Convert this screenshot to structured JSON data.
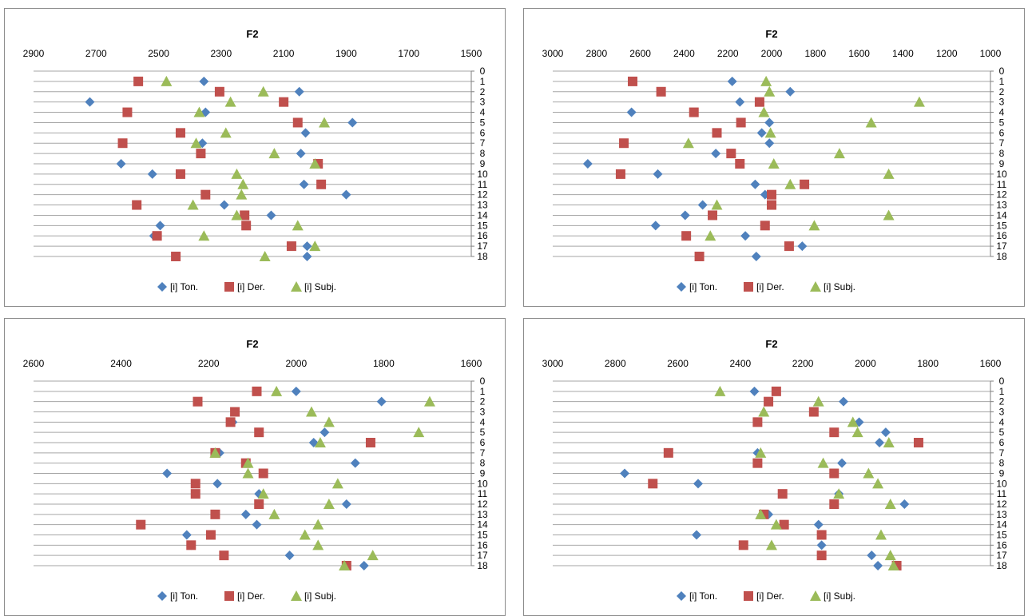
{
  "colors": {
    "ton": "#4f81bd",
    "der": "#c0504d",
    "subj": "#9bbb59"
  },
  "charts": [
    {
      "title": "F2",
      "xlim": [
        2900,
        1500
      ],
      "xticks": [
        2900,
        2700,
        2500,
        2300,
        2100,
        1900,
        1700,
        1500
      ],
      "yticks": [
        0,
        1,
        2,
        3,
        4,
        5,
        6,
        7,
        8,
        9,
        10,
        11,
        12,
        13,
        14,
        15,
        16,
        17,
        18
      ],
      "legend": [
        "[i] Ton.",
        "[i] Der.",
        "[i] Subj."
      ],
      "series": [
        {
          "key": "ton",
          "marker": "diamond",
          "points": [
            [
              2355,
              1
            ],
            [
              2050,
              2
            ],
            [
              2720,
              3
            ],
            [
              2350,
              4
            ],
            [
              1880,
              5
            ],
            [
              2030,
              6
            ],
            [
              2360,
              7
            ],
            [
              2045,
              8
            ],
            [
              2620,
              9
            ],
            [
              2520,
              10
            ],
            [
              2035,
              11
            ],
            [
              1900,
              12
            ],
            [
              2290,
              13
            ],
            [
              2140,
              14
            ],
            [
              2495,
              15
            ],
            [
              2515,
              16
            ],
            [
              2025,
              17
            ],
            [
              2025,
              18
            ]
          ]
        },
        {
          "key": "der",
          "marker": "square",
          "points": [
            [
              2565,
              1
            ],
            [
              2305,
              2
            ],
            [
              2100,
              3
            ],
            [
              2600,
              4
            ],
            [
              2055,
              5
            ],
            [
              2430,
              6
            ],
            [
              2615,
              7
            ],
            [
              2365,
              8
            ],
            [
              1990,
              9
            ],
            [
              2430,
              10
            ],
            [
              1980,
              11
            ],
            [
              2350,
              12
            ],
            [
              2570,
              13
            ],
            [
              2225,
              14
            ],
            [
              2220,
              15
            ],
            [
              2505,
              16
            ],
            [
              2075,
              17
            ],
            [
              2445,
              18
            ]
          ]
        },
        {
          "key": "subj",
          "marker": "triangle",
          "points": [
            [
              2475,
              1
            ],
            [
              2165,
              2
            ],
            [
              2270,
              3
            ],
            [
              2370,
              4
            ],
            [
              1970,
              5
            ],
            [
              2285,
              6
            ],
            [
              2380,
              7
            ],
            [
              2130,
              8
            ],
            [
              2000,
              9
            ],
            [
              2250,
              10
            ],
            [
              2230,
              11
            ],
            [
              2235,
              12
            ],
            [
              2390,
              13
            ],
            [
              2250,
              14
            ],
            [
              2055,
              15
            ],
            [
              2355,
              16
            ],
            [
              2000,
              17
            ],
            [
              2160,
              18
            ]
          ]
        }
      ]
    },
    {
      "title": "F2",
      "xlim": [
        3000,
        1000
      ],
      "xticks": [
        3000,
        2800,
        2600,
        2400,
        2200,
        2000,
        1800,
        1600,
        1400,
        1200,
        1000
      ],
      "yticks": [
        0,
        1,
        2,
        3,
        4,
        5,
        6,
        7,
        8,
        9,
        10,
        11,
        12,
        13,
        14,
        15,
        16,
        17,
        18
      ],
      "legend": [
        "[i] Ton.",
        "[i] Der.",
        "[i] Subj."
      ],
      "series": [
        {
          "key": "ton",
          "marker": "diamond",
          "points": [
            [
              2180,
              1
            ],
            [
              1915,
              2
            ],
            [
              2145,
              3
            ],
            [
              2640,
              4
            ],
            [
              2010,
              5
            ],
            [
              2045,
              6
            ],
            [
              2010,
              7
            ],
            [
              2255,
              8
            ],
            [
              2840,
              9
            ],
            [
              2520,
              10
            ],
            [
              2075,
              11
            ],
            [
              2030,
              12
            ],
            [
              2315,
              13
            ],
            [
              2395,
              14
            ],
            [
              2530,
              15
            ],
            [
              2120,
              16
            ],
            [
              1860,
              17
            ],
            [
              2070,
              18
            ]
          ]
        },
        {
          "key": "der",
          "marker": "square",
          "points": [
            [
              2635,
              1
            ],
            [
              2505,
              2
            ],
            [
              2055,
              3
            ],
            [
              2355,
              4
            ],
            [
              2140,
              5
            ],
            [
              2250,
              6
            ],
            [
              2675,
              7
            ],
            [
              2185,
              8
            ],
            [
              2145,
              9
            ],
            [
              2690,
              10
            ],
            [
              1850,
              11
            ],
            [
              2000,
              12
            ],
            [
              2000,
              13
            ],
            [
              2270,
              14
            ],
            [
              2030,
              15
            ],
            [
              2390,
              16
            ],
            [
              1920,
              17
            ],
            [
              2330,
              18
            ]
          ]
        },
        {
          "key": "subj",
          "marker": "triangle",
          "points": [
            [
              2025,
              1
            ],
            [
              2010,
              2
            ],
            [
              1325,
              3
            ],
            [
              2035,
              4
            ],
            [
              1545,
              5
            ],
            [
              2005,
              6
            ],
            [
              2380,
              7
            ],
            [
              1690,
              8
            ],
            [
              1990,
              9
            ],
            [
              1465,
              10
            ],
            [
              1915,
              11
            ],
            [
              2250,
              13
            ],
            [
              1465,
              14
            ],
            [
              1805,
              15
            ],
            [
              2280,
              16
            ]
          ]
        }
      ]
    },
    {
      "title": "F2",
      "xlim": [
        2600,
        1600
      ],
      "xticks": [
        2600,
        2400,
        2200,
        2000,
        1800,
        1600
      ],
      "yticks": [
        0,
        1,
        2,
        3,
        4,
        5,
        6,
        7,
        8,
        9,
        10,
        11,
        12,
        13,
        14,
        15,
        16,
        17,
        18
      ],
      "legend": [
        "[i] Ton.",
        "[i] Der.",
        "[i] Subj."
      ],
      "series": [
        {
          "key": "ton",
          "marker": "diamond",
          "points": [
            [
              2000,
              1
            ],
            [
              1805,
              2
            ],
            [
              2140,
              3
            ],
            [
              2145,
              4
            ],
            [
              1935,
              5
            ],
            [
              1960,
              6
            ],
            [
              2175,
              7
            ],
            [
              1865,
              8
            ],
            [
              2295,
              9
            ],
            [
              2180,
              10
            ],
            [
              2085,
              11
            ],
            [
              1885,
              12
            ],
            [
              2115,
              13
            ],
            [
              2090,
              14
            ],
            [
              2250,
              15
            ],
            [
              2240,
              16
            ],
            [
              2015,
              17
            ],
            [
              1845,
              18
            ]
          ]
        },
        {
          "key": "der",
          "marker": "square",
          "points": [
            [
              2090,
              1
            ],
            [
              2225,
              2
            ],
            [
              2140,
              3
            ],
            [
              2150,
              4
            ],
            [
              2085,
              5
            ],
            [
              1830,
              6
            ],
            [
              2185,
              7
            ],
            [
              2115,
              8
            ],
            [
              2075,
              9
            ],
            [
              2230,
              10
            ],
            [
              2230,
              11
            ],
            [
              2085,
              12
            ],
            [
              2185,
              13
            ],
            [
              2355,
              14
            ],
            [
              2195,
              15
            ],
            [
              2240,
              16
            ],
            [
              2165,
              17
            ],
            [
              1885,
              18
            ]
          ]
        },
        {
          "key": "subj",
          "marker": "triangle",
          "points": [
            [
              2045,
              1
            ],
            [
              1695,
              2
            ],
            [
              1965,
              3
            ],
            [
              1925,
              4
            ],
            [
              1720,
              5
            ],
            [
              1945,
              6
            ],
            [
              2185,
              7
            ],
            [
              2110,
              8
            ],
            [
              2110,
              9
            ],
            [
              1905,
              10
            ],
            [
              2075,
              11
            ],
            [
              1925,
              12
            ],
            [
              2050,
              13
            ],
            [
              1950,
              14
            ],
            [
              1980,
              15
            ],
            [
              1950,
              16
            ],
            [
              1825,
              17
            ],
            [
              1890,
              18
            ]
          ]
        }
      ]
    },
    {
      "title": "F2",
      "xlim": [
        3000,
        1600
      ],
      "xticks": [
        3000,
        2800,
        2600,
        2400,
        2200,
        2000,
        1800,
        1600
      ],
      "yticks": [
        0,
        1,
        2,
        3,
        4,
        5,
        6,
        7,
        8,
        9,
        10,
        11,
        12,
        13,
        14,
        15,
        16,
        17,
        18
      ],
      "legend": [
        "[i] Ton.",
        "[i] Der.",
        "[i] Subj."
      ],
      "series": [
        {
          "key": "ton",
          "marker": "diamond",
          "points": [
            [
              2355,
              1
            ],
            [
              2070,
              2
            ],
            [
              2020,
              4
            ],
            [
              1935,
              5
            ],
            [
              1955,
              6
            ],
            [
              2345,
              7
            ],
            [
              2075,
              8
            ],
            [
              2770,
              9
            ],
            [
              2535,
              10
            ],
            [
              2085,
              11
            ],
            [
              1875,
              12
            ],
            [
              2310,
              13
            ],
            [
              2150,
              14
            ],
            [
              2540,
              15
            ],
            [
              2140,
              16
            ],
            [
              1980,
              17
            ],
            [
              1960,
              18
            ]
          ]
        },
        {
          "key": "der",
          "marker": "square",
          "points": [
            [
              2285,
              1
            ],
            [
              2310,
              2
            ],
            [
              2165,
              3
            ],
            [
              2345,
              4
            ],
            [
              2100,
              5
            ],
            [
              1830,
              6
            ],
            [
              2630,
              7
            ],
            [
              2345,
              8
            ],
            [
              2100,
              9
            ],
            [
              2680,
              10
            ],
            [
              2265,
              11
            ],
            [
              2100,
              12
            ],
            [
              2325,
              13
            ],
            [
              2260,
              14
            ],
            [
              2140,
              15
            ],
            [
              2390,
              16
            ],
            [
              2140,
              17
            ],
            [
              1900,
              18
            ]
          ]
        },
        {
          "key": "subj",
          "marker": "triangle",
          "points": [
            [
              2465,
              1
            ],
            [
              2150,
              2
            ],
            [
              2325,
              3
            ],
            [
              2040,
              4
            ],
            [
              2025,
              5
            ],
            [
              1925,
              6
            ],
            [
              2335,
              7
            ],
            [
              2135,
              8
            ],
            [
              1990,
              9
            ],
            [
              1960,
              10
            ],
            [
              2085,
              11
            ],
            [
              1920,
              12
            ],
            [
              2335,
              13
            ],
            [
              2285,
              14
            ],
            [
              1950,
              15
            ],
            [
              2300,
              16
            ],
            [
              1920,
              17
            ],
            [
              1910,
              18
            ]
          ]
        }
      ]
    }
  ]
}
